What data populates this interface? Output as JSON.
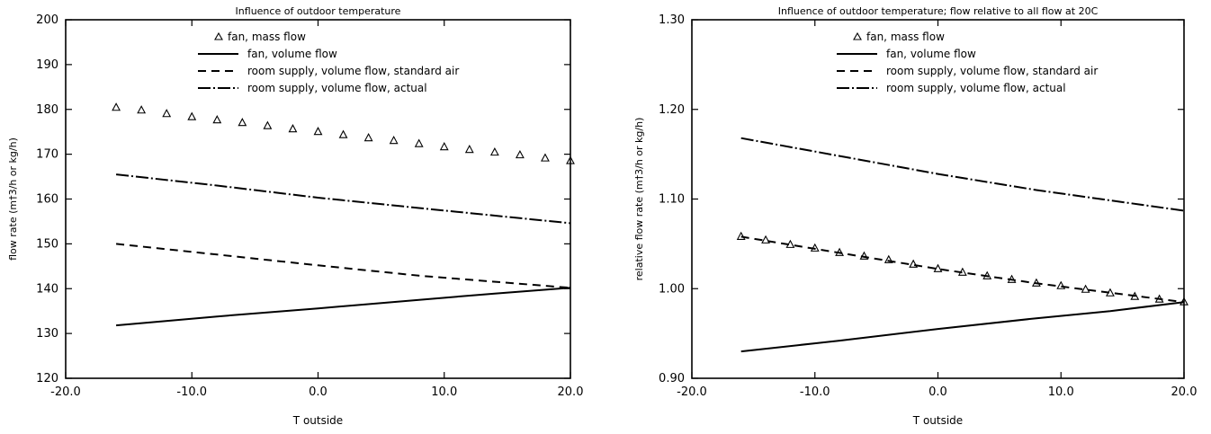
{
  "chart_data": [
    {
      "type": "line",
      "title": "Influence of outdoor temperature",
      "xlabel": "T outside",
      "ylabel": "flow rate (m†3/h or kg/h)",
      "xlim": [
        -20,
        20
      ],
      "ylim": [
        120,
        200
      ],
      "xticks": [
        -20,
        -10,
        0,
        10,
        20
      ],
      "xtick_labels": [
        "-20.0",
        "-10.0",
        "0.0",
        "10.0",
        "20.0"
      ],
      "yticks": [
        120,
        130,
        140,
        150,
        160,
        170,
        180,
        190,
        200
      ],
      "ytick_labels": [
        "120",
        "130",
        "140",
        "150",
        "160",
        "170",
        "180",
        "190",
        "200"
      ],
      "grid": false,
      "legend_position": "top-right",
      "series": [
        {
          "name": "fan, mass flow",
          "style": "triangle-markers",
          "x": [
            -16,
            -14,
            -12,
            -10,
            -8,
            -6,
            -4,
            -2,
            0,
            2,
            4,
            6,
            8,
            10,
            12,
            14,
            16,
            18,
            20
          ],
          "y": [
            180.4,
            179.8,
            179.0,
            178.3,
            177.6,
            177.0,
            176.3,
            175.6,
            175.0,
            174.3,
            173.6,
            173.0,
            172.3,
            171.6,
            171.0,
            170.4,
            169.8,
            169.1,
            168.5
          ]
        },
        {
          "name": "fan, volume flow",
          "style": "solid",
          "x": [
            -16,
            -8,
            0,
            8,
            14,
            20
          ],
          "y": [
            131.8,
            133.8,
            135.6,
            137.5,
            138.9,
            140.2
          ]
        },
        {
          "name": "room supply, volume flow, standard air",
          "style": "dashed",
          "x": [
            -16,
            -8,
            0,
            8,
            20
          ],
          "y": [
            150.0,
            147.6,
            145.2,
            142.9,
            140.2
          ]
        },
        {
          "name": "room supply, volume flow, actual",
          "style": "dash-dot",
          "x": [
            -16,
            -8,
            0,
            8,
            20
          ],
          "y": [
            165.5,
            163.0,
            160.3,
            158.0,
            154.6
          ]
        }
      ]
    },
    {
      "type": "line",
      "title": "Influence of outdoor temperature; flow relative to all flow at 20C",
      "xlabel": "T outside",
      "ylabel": "relative flow rate (m†3/h or kg/h)",
      "xlim": [
        -20,
        20
      ],
      "ylim": [
        0.9,
        1.3
      ],
      "xticks": [
        -20,
        -10,
        0,
        10,
        20
      ],
      "xtick_labels": [
        "-20.0",
        "-10.0",
        "0.0",
        "10.0",
        "20.0"
      ],
      "yticks": [
        0.9,
        1.0,
        1.1,
        1.2,
        1.3
      ],
      "ytick_labels": [
        "0.90",
        "1.00",
        "1.10",
        "1.20",
        "1.30"
      ],
      "grid": false,
      "legend_position": "top-right",
      "series": [
        {
          "name": "fan, mass flow",
          "style": "triangle-markers",
          "x": [
            -16,
            -14,
            -12,
            -10,
            -8,
            -6,
            -4,
            -2,
            0,
            2,
            4,
            6,
            8,
            10,
            12,
            14,
            16,
            18,
            20
          ],
          "y": [
            1.058,
            1.054,
            1.049,
            1.045,
            1.04,
            1.036,
            1.032,
            1.027,
            1.022,
            1.018,
            1.014,
            1.01,
            1.006,
            1.003,
            0.999,
            0.995,
            0.991,
            0.988,
            0.985
          ]
        },
        {
          "name": "fan, volume flow",
          "style": "solid",
          "x": [
            -16,
            -8,
            0,
            8,
            14,
            20
          ],
          "y": [
            0.93,
            0.942,
            0.955,
            0.967,
            0.975,
            0.985
          ]
        },
        {
          "name": "room supply, volume flow, standard air",
          "style": "dashed",
          "x": [
            -16,
            -8,
            0,
            8,
            20
          ],
          "y": [
            1.058,
            1.04,
            1.022,
            1.006,
            0.985
          ]
        },
        {
          "name": "room supply, volume flow, actual",
          "style": "dash-dot",
          "x": [
            -16,
            -8,
            0,
            8,
            20
          ],
          "y": [
            1.168,
            1.148,
            1.128,
            1.11,
            1.087
          ]
        }
      ]
    }
  ]
}
